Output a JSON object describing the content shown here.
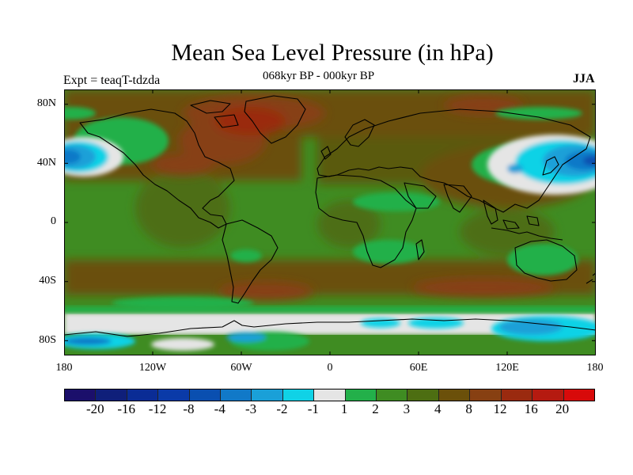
{
  "figure": {
    "title": "Mean Sea Level Pressure (in hPa)",
    "subtitle": "068kyr BP - 000kyr BP",
    "experiment": "Expt = teaqT-tdzda",
    "season": "JJA"
  },
  "map": {
    "projection": "cylindrical-equidistant",
    "lat_labels": [
      "80N",
      "40N",
      "0",
      "40S",
      "80S"
    ],
    "lon_labels": [
      "180",
      "120W",
      "60W",
      "0",
      "60E",
      "120E",
      "180"
    ]
  },
  "colorbar": {
    "colors": [
      "#1b0f6b",
      "#0f1f7a",
      "#0a2c95",
      "#0a3aa8",
      "#0a4fb0",
      "#1179c8",
      "#1aa0d8",
      "#10d2e6",
      "#e5e5e5",
      "#23b04a",
      "#3f8c22",
      "#4d6e12",
      "#6b500a",
      "#874012",
      "#9a2a0f",
      "#b51a10",
      "#d80a0a"
    ],
    "labels": [
      "-20",
      "-16",
      "-12",
      "-8",
      "-4",
      "-3",
      "-2",
      "-1",
      "1",
      "2",
      "3",
      "4",
      "8",
      "12",
      "16",
      "20"
    ]
  }
}
